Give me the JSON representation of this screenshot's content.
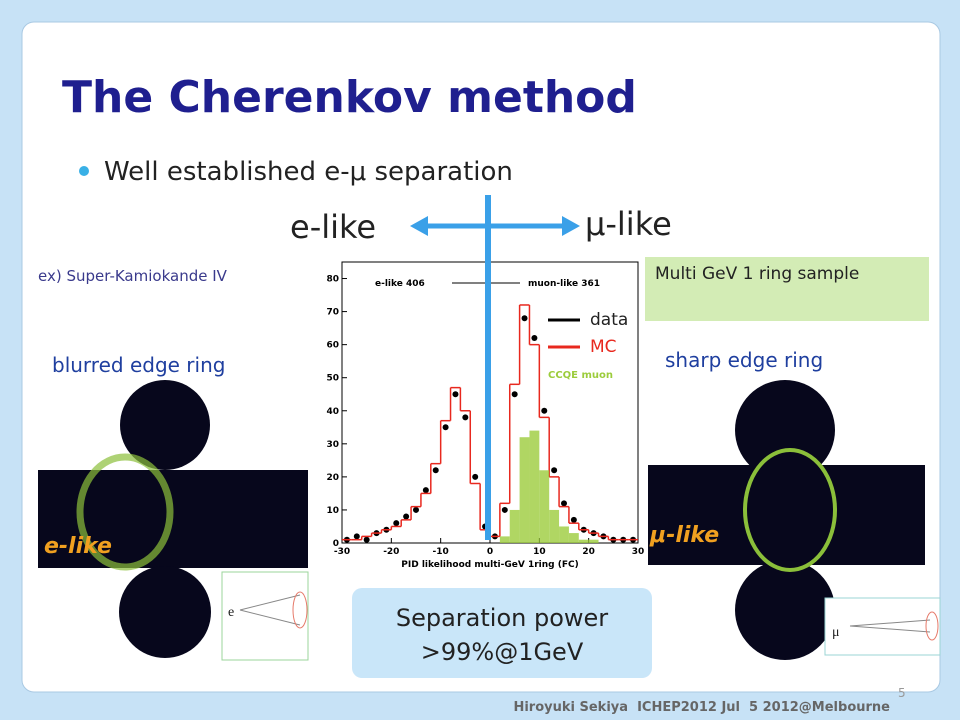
{
  "title": "The Cherenkov method",
  "bullet": "Well established e-μ separation",
  "e_like": "e-like",
  "mu_like": "μ-like",
  "example": "ex) Super-Kamiokande IV",
  "sample_box": "Multi GeV 1 ring sample",
  "left_caption": "blurred edge ring",
  "right_caption": "sharp edge ring",
  "left_event_label": "e-like",
  "right_event_label": "μ-like",
  "left_diagram_label": "e",
  "right_diagram_label": "μ",
  "result": [
    "Separation power",
    ">99%@1GeV"
  ],
  "footer": "Hiroyuki Sekiya  ICHEP2012 Jul  5 2012@Melbourne",
  "page_number": "5",
  "chart_data": {
    "type": "histogram",
    "xlabel": "PID likelihood multi-GeV 1ring (FC)",
    "annotations": [
      "e-like 406",
      "muon-like 361"
    ],
    "bins": [
      -30,
      -28,
      -26,
      -24,
      -22,
      -20,
      -18,
      -16,
      -14,
      -12,
      -10,
      -8,
      -6,
      -4,
      -2,
      0,
      2,
      4,
      6,
      8,
      10,
      12,
      14,
      16,
      18,
      20,
      22,
      24,
      26,
      28,
      30
    ],
    "series": [
      {
        "name": "data",
        "color": "#000000",
        "style": "points",
        "values": [
          1,
          2,
          1,
          3,
          4,
          6,
          8,
          10,
          16,
          22,
          35,
          45,
          38,
          20,
          5,
          2,
          10,
          45,
          68,
          62,
          40,
          22,
          12,
          7,
          4,
          3,
          2,
          1,
          1,
          1
        ]
      },
      {
        "name": "MC",
        "color": "#e8281e",
        "style": "step",
        "values": [
          1,
          1,
          2,
          3,
          4,
          5,
          7,
          11,
          15,
          24,
          37,
          47,
          40,
          18,
          4,
          2,
          12,
          48,
          72,
          60,
          38,
          20,
          11,
          6,
          4,
          3,
          2,
          1,
          1,
          1
        ]
      },
      {
        "name": "CCQE muon",
        "color": "#9ccc3c",
        "style": "fill",
        "values": [
          0,
          0,
          0,
          0,
          0,
          0,
          0,
          0,
          0,
          0,
          0,
          0,
          0,
          0,
          0,
          0,
          2,
          10,
          32,
          34,
          22,
          10,
          5,
          3,
          1,
          1,
          0,
          0,
          0,
          0
        ]
      }
    ],
    "xlim": [
      -30,
      30
    ],
    "ylim": [
      0,
      85
    ],
    "xticks": [
      -30,
      -20,
      -10,
      0,
      10,
      20,
      30
    ],
    "yticks": [
      0,
      10,
      20,
      30,
      40,
      50,
      60,
      70,
      80
    ]
  }
}
